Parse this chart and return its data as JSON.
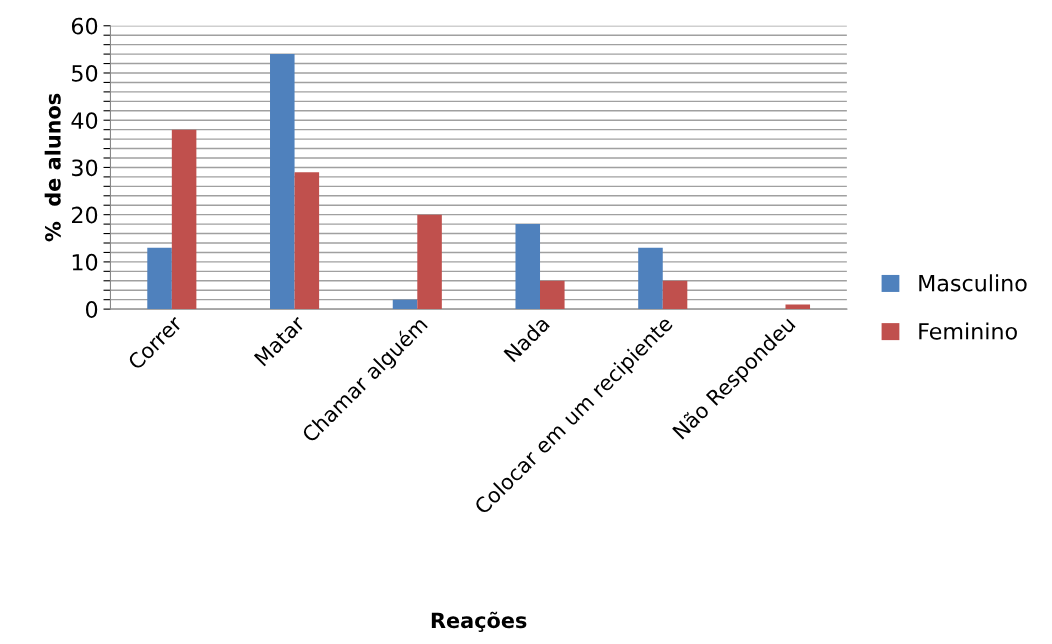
{
  "chart_data": {
    "type": "bar",
    "xlabel": "Reações",
    "ylabel": "%  de alunos",
    "categories": [
      "Correr",
      "Matar",
      "Chamar alguém",
      "Nada",
      "Colocar em um recipiente",
      "Não Respondeu"
    ],
    "series": [
      {
        "name": "Masculino",
        "color": "#4f81bd",
        "values": [
          13,
          54,
          2,
          18,
          13,
          0
        ]
      },
      {
        "name": "Feminino",
        "color": "#c0504d",
        "values": [
          38,
          29,
          20,
          6,
          6,
          1
        ]
      }
    ],
    "ylim": [
      0,
      60
    ],
    "yticks": [
      0,
      {
        "value": 2,
        "label": null
      },
      {
        "value": 4,
        "label": null
      },
      {
        "value": 6,
        "label": null
      },
      {
        "value": 8,
        "label": null
      },
      10,
      {
        "value": 12,
        "label": null
      },
      {
        "value": 14,
        "label": null
      },
      {
        "value": 16,
        "label": null
      },
      {
        "value": 18,
        "label": null
      },
      20,
      {
        "value": 22,
        "label": null
      },
      {
        "value": 24,
        "label": null
      },
      {
        "value": 26,
        "label": null
      },
      {
        "value": 28,
        "label": null
      },
      30,
      {
        "value": 32,
        "label": null
      },
      {
        "value": 34,
        "label": null
      },
      {
        "value": 36,
        "label": null
      },
      {
        "value": 38,
        "label": null
      },
      40,
      {
        "value": 42,
        "label": null
      },
      {
        "value": 44,
        "label": null
      },
      {
        "value": 46,
        "label": null
      },
      {
        "value": 48,
        "label": null
      },
      50,
      {
        "value": 52,
        "label": null
      },
      {
        "value": 54,
        "label": null
      },
      {
        "value": 56,
        "label": null
      },
      {
        "value": 58,
        "label": null
      },
      60
    ],
    "grid": "y",
    "legend": "right"
  }
}
